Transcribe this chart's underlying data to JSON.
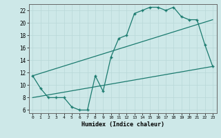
{
  "line1_x": [
    0,
    1,
    2,
    3,
    4,
    5,
    6,
    7,
    8,
    9,
    10,
    11,
    12,
    13,
    14,
    15,
    16,
    17,
    18,
    19,
    20,
    21,
    22,
    23
  ],
  "line1_y": [
    11.5,
    9.5,
    8.0,
    8.0,
    8.0,
    6.5,
    6.0,
    6.0,
    11.5,
    9.0,
    14.5,
    17.5,
    18.0,
    21.5,
    22.0,
    22.5,
    22.5,
    22.0,
    22.5,
    21.0,
    20.5,
    20.5,
    16.5,
    13.0
  ],
  "line2_x": [
    0,
    23
  ],
  "line2_y": [
    8.0,
    13.0
  ],
  "line3_x": [
    0,
    23
  ],
  "line3_y": [
    11.5,
    20.5
  ],
  "line_color": "#1a7a6e",
  "bg_color": "#cde8e8",
  "grid_color": "#b8d8d8",
  "xlabel": "Humidex (Indice chaleur)",
  "xlim": [
    -0.5,
    23.5
  ],
  "ylim": [
    5.5,
    23.0
  ],
  "yticks": [
    6,
    8,
    10,
    12,
    14,
    16,
    18,
    20,
    22
  ],
  "xticks": [
    0,
    1,
    2,
    3,
    4,
    5,
    6,
    7,
    8,
    9,
    10,
    11,
    12,
    13,
    14,
    15,
    16,
    17,
    18,
    19,
    20,
    21,
    22,
    23
  ]
}
